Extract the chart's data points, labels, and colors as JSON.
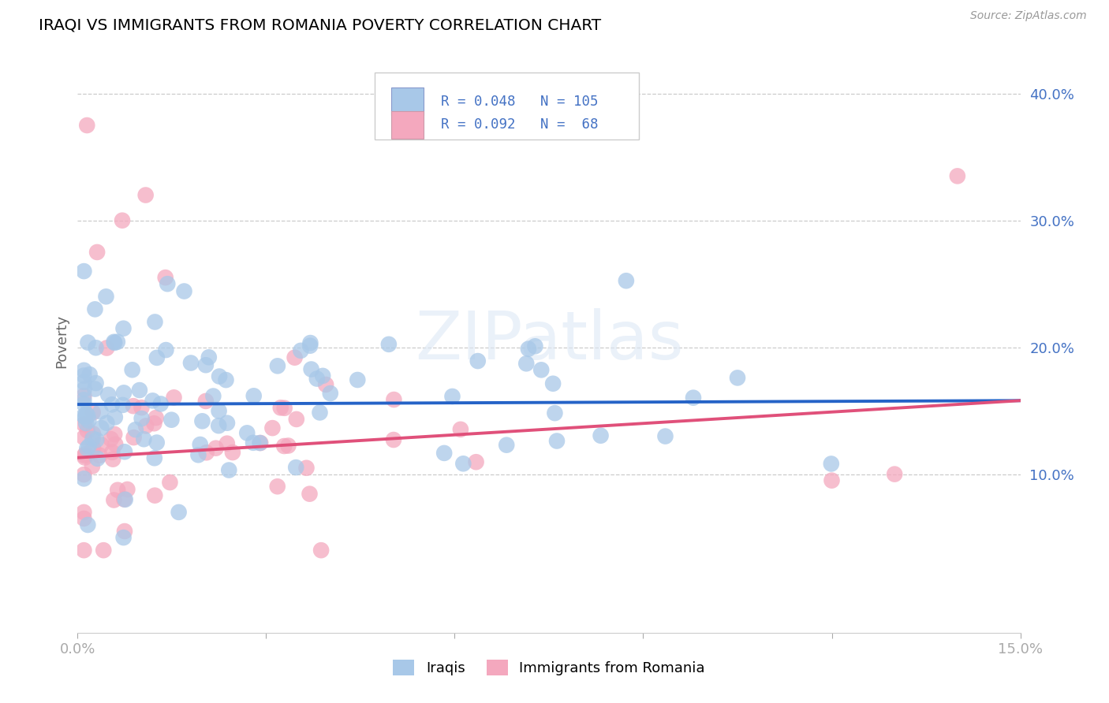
{
  "title": "IRAQI VS IMMIGRANTS FROM ROMANIA POVERTY CORRELATION CHART",
  "source": "Source: ZipAtlas.com",
  "ylabel": "Poverty",
  "xlim": [
    0,
    0.15
  ],
  "ylim": [
    -0.025,
    0.435
  ],
  "series1_name": "Iraqis",
  "series2_name": "Immigrants from Romania",
  "series1_color": "#a8c8e8",
  "series2_color": "#f4a8be",
  "series1_line_color": "#2563c7",
  "series2_line_color": "#e0507a",
  "watermark": "ZIPatlas",
  "blue_line_y0": 0.155,
  "blue_line_y1": 0.158,
  "pink_line_y0": 0.113,
  "pink_line_y1": 0.158,
  "tick_color": "#4472c4",
  "ylabel_color": "#666666",
  "grid_color": "#cccccc"
}
